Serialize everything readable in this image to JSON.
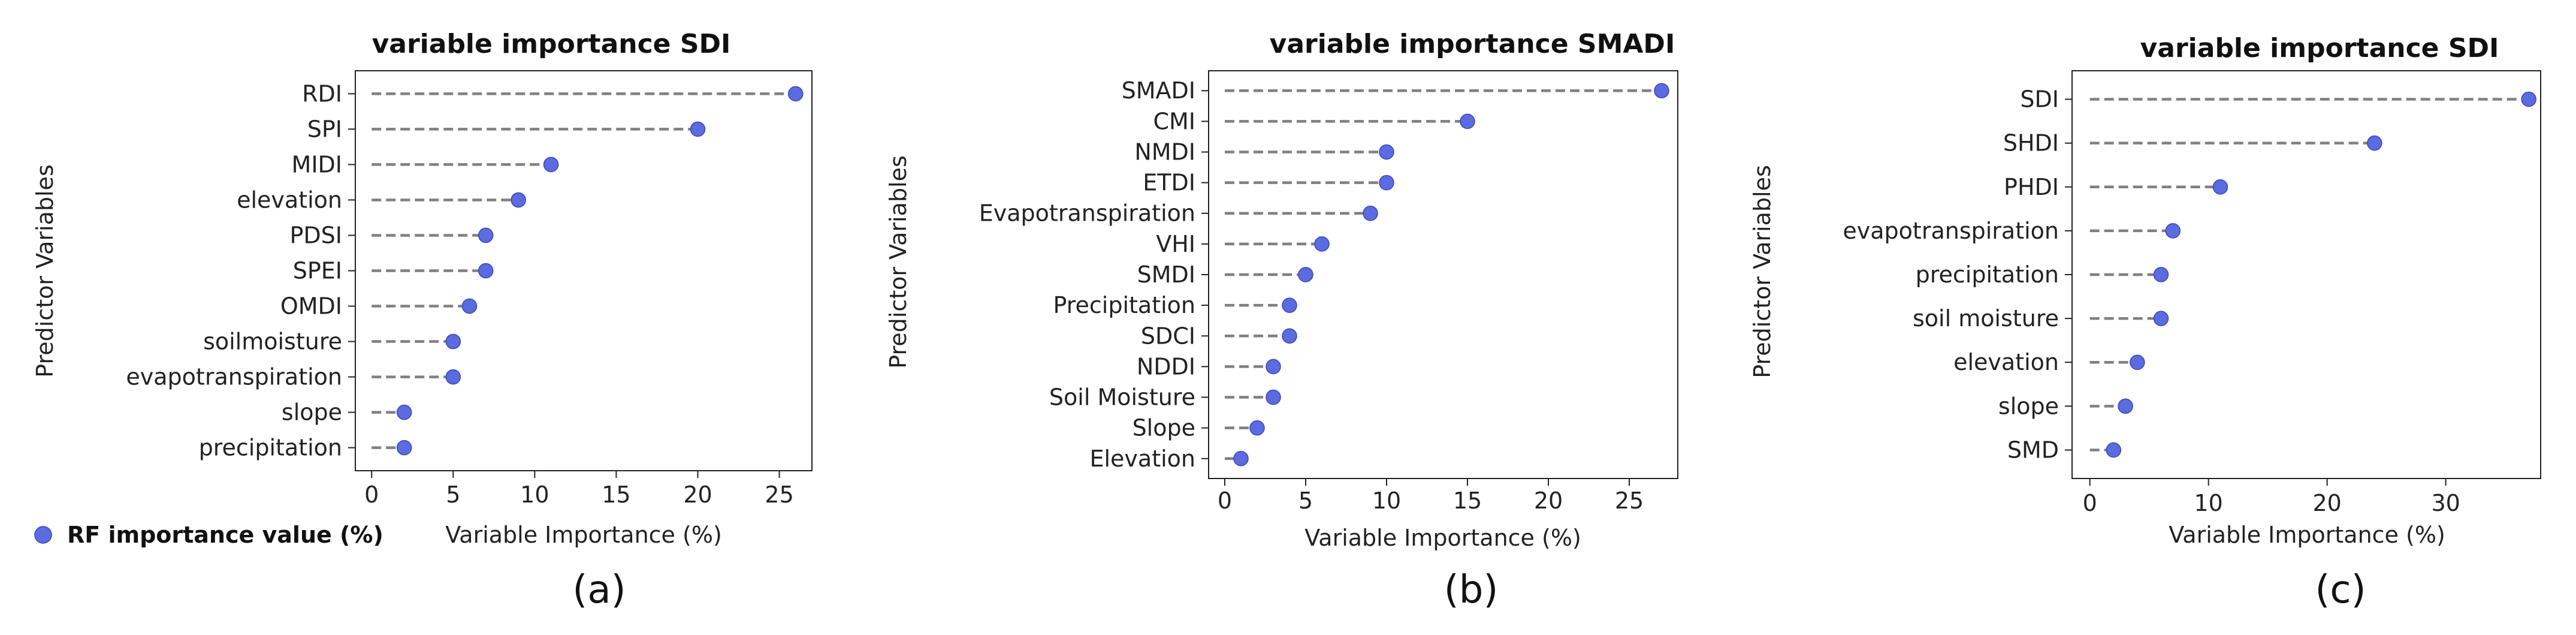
{
  "legend": {
    "label": "RF importance value (%)",
    "color": "#5B6BE0"
  },
  "chart_data": [
    {
      "type": "lollipop",
      "title": "variable importance SDI",
      "xlabel": "Variable Importance (%)",
      "ylabel": "Predictor Variables",
      "caption": "(a)",
      "xlim": [
        -1,
        27
      ],
      "xticks": [
        "0",
        "5",
        "10",
        "15",
        "20",
        "25"
      ],
      "categories": [
        "RDI",
        "SPI",
        "MIDI",
        "elevation",
        "PDSI",
        "SPEI",
        "OMDI",
        "soilmoisture",
        "evapotranspiration",
        "slope",
        "precipitation"
      ],
      "values": [
        26,
        20,
        11,
        9,
        7,
        7,
        6,
        5,
        5,
        2,
        2
      ]
    },
    {
      "type": "lollipop",
      "title": "variable importance SMADI",
      "xlabel": "Variable Importance (%)",
      "ylabel": "Predictor Variables",
      "caption": "(b)",
      "xlim": [
        -1,
        28
      ],
      "xticks": [
        "0",
        "5",
        "10",
        "15",
        "20",
        "25"
      ],
      "categories": [
        "SMADI",
        "CMI",
        "NMDI",
        "ETDI",
        "Evapotranspiration",
        "VHI",
        "SMDI",
        "Precipitation",
        "SDCI",
        "NDDI",
        "Soil Moisture",
        "Slope",
        "Elevation"
      ],
      "values": [
        27,
        15,
        10,
        10,
        9,
        6,
        5,
        4,
        4,
        3,
        3,
        2,
        1
      ]
    },
    {
      "type": "lollipop",
      "title": "variable importance SDI",
      "xlabel": "Variable Importance (%)",
      "ylabel": "Predictor Variables",
      "caption": "(c)",
      "xlim": [
        -1.5,
        38
      ],
      "xticks": [
        "0",
        "10",
        "20",
        "30"
      ],
      "categories": [
        "SDI",
        "SHDI",
        "PHDI",
        "evapotranspiration",
        "precipitation",
        "soil moisture",
        "elevation",
        "slope",
        "SMD"
      ],
      "values": [
        37,
        24,
        11,
        7,
        6,
        6,
        4,
        3,
        2
      ]
    }
  ]
}
